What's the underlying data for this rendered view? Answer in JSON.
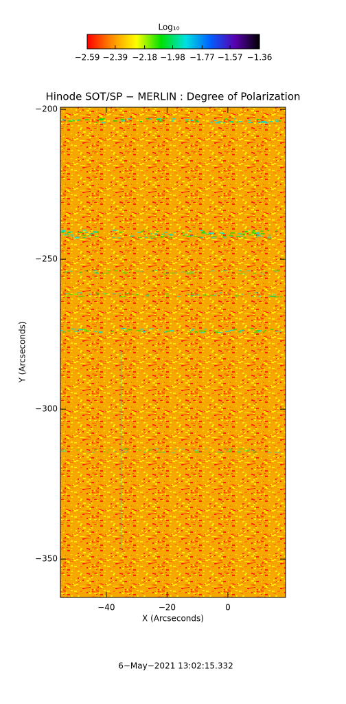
{
  "chart_data": {
    "type": "heatmap",
    "title": "Hinode SOT/SP − MERLIN : Degree of Polarization",
    "colorbar_label": "Log₁₀",
    "colorbar_ticks": [
      {
        "value": -2.59,
        "label": "−2.59"
      },
      {
        "value": -2.39,
        "label": "−2.39"
      },
      {
        "value": -2.18,
        "label": "−2.18"
      },
      {
        "value": -1.98,
        "label": "−1.98"
      },
      {
        "value": -1.77,
        "label": "−1.77"
      },
      {
        "value": -1.57,
        "label": "−1.57"
      },
      {
        "value": -1.36,
        "label": "−1.36"
      }
    ],
    "colorbar_lim": [
      -2.59,
      -1.36
    ],
    "colormap": [
      "#ff0000",
      "#ff8c00",
      "#ffff00",
      "#00e000",
      "#00e0e0",
      "#0060ff",
      "#5a00b0",
      "#000000"
    ],
    "x_label": "X (Arcseconds)",
    "y_label": "Y (Arcseconds)",
    "xlim": [
      -55.1,
      19
    ],
    "ylim": [
      -362.8,
      -199.3
    ],
    "xticks": [
      {
        "value": -40,
        "label": "−40"
      },
      {
        "value": -20,
        "label": "−20"
      },
      0
    ],
    "yticks": [
      {
        "value": -200,
        "label": "−200"
      },
      {
        "value": -250,
        "label": "−250"
      },
      {
        "value": -300,
        "label": "−300"
      },
      {
        "value": -350,
        "label": "−350"
      }
    ],
    "footer": "6−May−2021 13:02:15.332"
  }
}
